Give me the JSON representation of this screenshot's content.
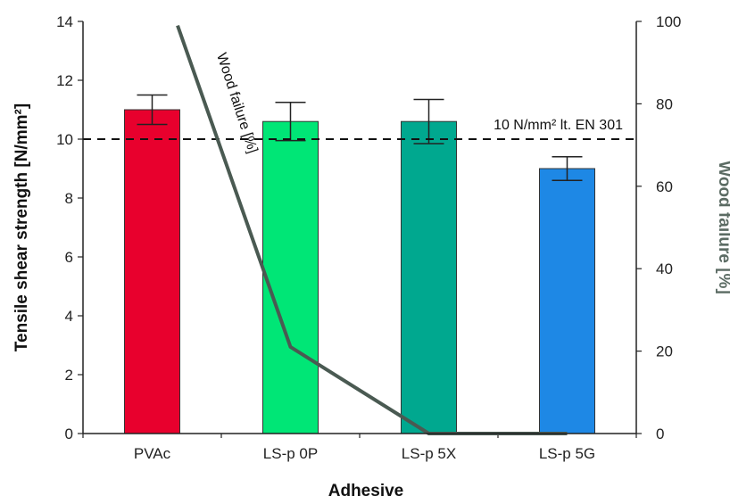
{
  "chart_data": {
    "type": "bar",
    "categories": [
      "PVAc",
      "LS-p 0P",
      "LS-p 5X",
      "LS-p 5G"
    ],
    "xlabel": "Adhesive",
    "ylabel": "Tensile shear strength [N/mm²]",
    "ylim": [
      0,
      14
    ],
    "yticks": [
      0,
      2,
      4,
      6,
      8,
      10,
      12,
      14
    ],
    "y2label": "Wood failure [%]",
    "y2lim": [
      0,
      100
    ],
    "y2ticks": [
      0,
      20,
      40,
      60,
      80,
      100
    ],
    "series": [
      {
        "type": "bar",
        "values": [
          11.0,
          10.6,
          10.6,
          9.0
        ],
        "errors": [
          0.5,
          0.65,
          0.75,
          0.4
        ],
        "colors": [
          "#e8002d",
          "#00e676",
          "#00a88f",
          "#1e88e5"
        ]
      },
      {
        "type": "line",
        "name": "Wood failure [%]",
        "axis": "y2",
        "points": [
          {
            "x": "PVAc",
            "y": 99
          },
          {
            "x": "LS-p 0P",
            "y": 21
          },
          {
            "x": "LS-p 5X",
            "y": 0
          },
          {
            "x": "LS-p 5G",
            "y": 0
          }
        ],
        "color": "#4a5a52"
      }
    ],
    "reference_line": {
      "value": 10,
      "label": "10 N/mm² lt. EN 301",
      "style": "dashed"
    },
    "grid": false,
    "legend": "none"
  }
}
